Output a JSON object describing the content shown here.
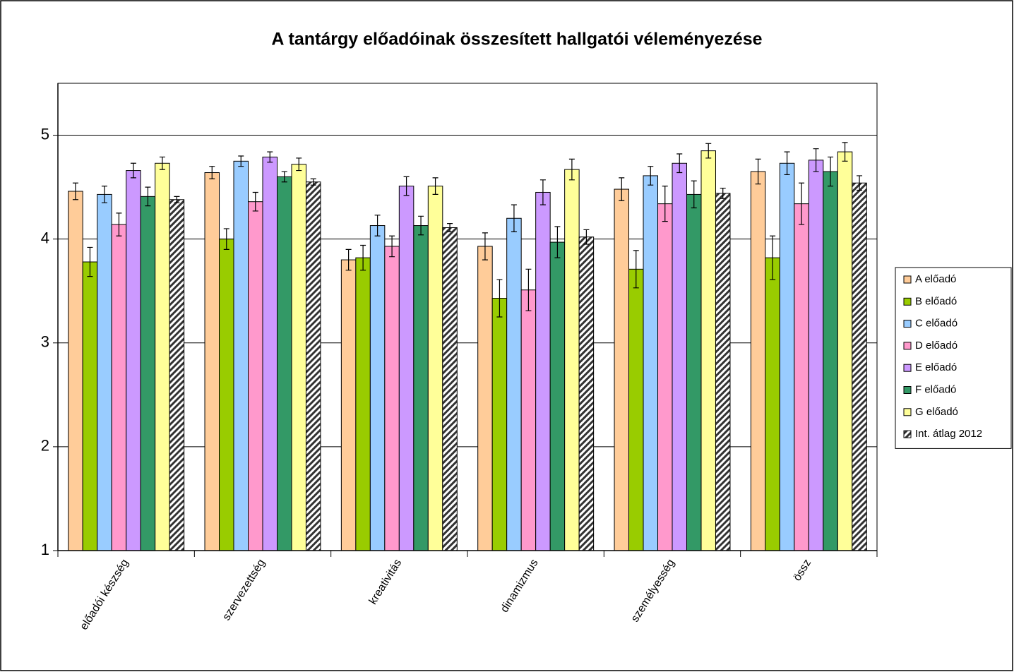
{
  "chart_data": {
    "type": "bar",
    "title": "A tantárgy előadóinak összesített hallgatói véleményezése",
    "categories": [
      "előadói készség",
      "szervezettség",
      "kreativitás",
      "dinamizmus",
      "személyesség",
      "össz"
    ],
    "ylim": [
      1,
      5.5
    ],
    "yticks": [
      1,
      2,
      3,
      4,
      5
    ],
    "grid": true,
    "legend": "right",
    "error_bars": true,
    "series": [
      {
        "name": "A előadó",
        "color": "#ffcc99",
        "values": [
          4.46,
          4.64,
          3.8,
          3.93,
          4.48,
          4.65
        ],
        "errors": [
          0.08,
          0.06,
          0.1,
          0.13,
          0.11,
          0.12
        ]
      },
      {
        "name": "B előadó",
        "color": "#99cc00",
        "values": [
          3.78,
          4.0,
          3.82,
          3.43,
          3.71,
          3.82
        ],
        "errors": [
          0.14,
          0.1,
          0.12,
          0.18,
          0.18,
          0.21
        ]
      },
      {
        "name": "C előadó",
        "color": "#99ccff",
        "values": [
          4.43,
          4.75,
          4.13,
          4.2,
          4.61,
          4.73
        ],
        "errors": [
          0.08,
          0.05,
          0.1,
          0.13,
          0.09,
          0.11
        ]
      },
      {
        "name": "D előadó",
        "color": "#ff99cc",
        "values": [
          4.14,
          4.36,
          3.93,
          3.51,
          4.34,
          4.34
        ],
        "errors": [
          0.11,
          0.09,
          0.1,
          0.2,
          0.17,
          0.2
        ]
      },
      {
        "name": "E előadó",
        "color": "#cc99ff",
        "values": [
          4.66,
          4.79,
          4.51,
          4.45,
          4.73,
          4.76
        ],
        "errors": [
          0.07,
          0.05,
          0.09,
          0.12,
          0.09,
          0.11
        ]
      },
      {
        "name": "F előadó",
        "color": "#339966",
        "values": [
          4.41,
          4.6,
          4.13,
          3.97,
          4.43,
          4.65
        ],
        "errors": [
          0.09,
          0.05,
          0.09,
          0.15,
          0.13,
          0.14
        ]
      },
      {
        "name": "G előadó",
        "color": "#ffff99",
        "values": [
          4.73,
          4.72,
          4.51,
          4.67,
          4.85,
          4.84
        ],
        "errors": [
          0.06,
          0.06,
          0.08,
          0.1,
          0.07,
          0.09
        ]
      },
      {
        "name": "Int. átlag 2012",
        "color": "#333333",
        "pattern": "hatch",
        "values": [
          4.38,
          4.55,
          4.11,
          4.02,
          4.44,
          4.54
        ],
        "errors": [
          0.03,
          0.03,
          0.04,
          0.07,
          0.05,
          0.07
        ]
      }
    ]
  }
}
